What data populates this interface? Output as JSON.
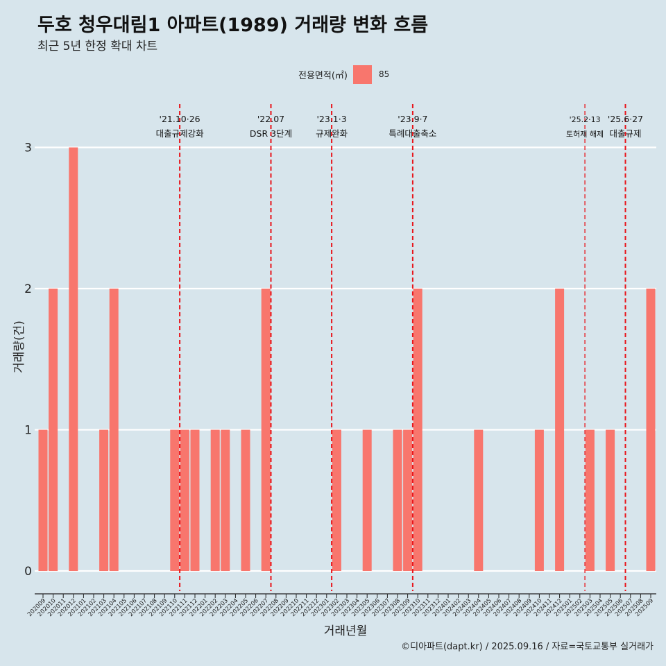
{
  "header": {
    "title": "두호 청우대림1 아파트(1989) 거래량 변화 흐름",
    "subtitle": "최근 5년 한정 확대 차트"
  },
  "legend": {
    "title": "전용면적(㎡)",
    "value": "85",
    "color": "#f8766d"
  },
  "caption": "©디아파트(dapt.kr) / 2025.09.16 / 자료=국토교통부 실거래가",
  "chart_data": {
    "type": "bar",
    "title": "두호 청우대림1 아파트(1989) 거래량 변화 흐름",
    "xlabel": "거래년월",
    "ylabel": "거래량(건)",
    "ylim": [
      0,
      3
    ],
    "yticks": [
      0,
      1,
      2,
      3
    ],
    "grid": true,
    "legend_position": "top",
    "series": [
      {
        "name": "85",
        "color": "#f8766d"
      }
    ],
    "categories": [
      "202009",
      "202010",
      "202011",
      "202012",
      "202101",
      "202102",
      "202103",
      "202104",
      "202105",
      "202106",
      "202107",
      "202108",
      "202109",
      "202110",
      "202111",
      "202112",
      "202201",
      "202202",
      "202203",
      "202204",
      "202205",
      "202206",
      "202207",
      "202208",
      "202209",
      "202210",
      "202211",
      "202212",
      "202301",
      "202302",
      "202303",
      "202304",
      "202305",
      "202306",
      "202307",
      "202308",
      "202309",
      "202310",
      "202311",
      "202312",
      "202401",
      "202402",
      "202403",
      "202404",
      "202405",
      "202406",
      "202407",
      "202408",
      "202409",
      "202410",
      "202411",
      "202412",
      "202501",
      "202502",
      "202503",
      "202504",
      "202505",
      "202506",
      "202507",
      "202508",
      "202509"
    ],
    "bars": [
      {
        "month": "202009",
        "value": 1
      },
      {
        "month": "202010",
        "value": 2
      },
      {
        "month": "202012",
        "value": 3
      },
      {
        "month": "202103",
        "value": 1
      },
      {
        "month": "202104",
        "value": 2
      },
      {
        "month": "202110",
        "value": 1
      },
      {
        "month": "202111",
        "value": 1
      },
      {
        "month": "202112",
        "value": 1
      },
      {
        "month": "202202",
        "value": 1
      },
      {
        "month": "202203",
        "value": 1
      },
      {
        "month": "202205",
        "value": 1
      },
      {
        "month": "202207",
        "value": 2
      },
      {
        "month": "202302",
        "value": 1
      },
      {
        "month": "202305",
        "value": 1
      },
      {
        "month": "202308",
        "value": 1
      },
      {
        "month": "202309",
        "value": 1
      },
      {
        "month": "202310",
        "value": 2
      },
      {
        "month": "202404",
        "value": 1
      },
      {
        "month": "202410",
        "value": 1
      },
      {
        "month": "202412",
        "value": 2
      },
      {
        "month": "202503",
        "value": 1
      },
      {
        "month": "202505",
        "value": 1
      },
      {
        "month": "202509",
        "value": 2
      }
    ],
    "events": [
      {
        "position": 13.5,
        "date": "'21.10·26",
        "label": "대출규제강화",
        "small": false
      },
      {
        "position": 22.5,
        "date": "'22.07",
        "label": "DSR 3단계",
        "small": false
      },
      {
        "position": 28.5,
        "date": "'23.1·3",
        "label": "규제완화",
        "small": false
      },
      {
        "position": 36.5,
        "date": "'23.9·7",
        "label": "특례대출축소",
        "small": false
      },
      {
        "position": 53.5,
        "date": "'25.2·13",
        "label": "토허제 해제",
        "small": true
      },
      {
        "position": 57.5,
        "date": "'25.6·27",
        "label": "대출규제",
        "small": false
      }
    ]
  }
}
